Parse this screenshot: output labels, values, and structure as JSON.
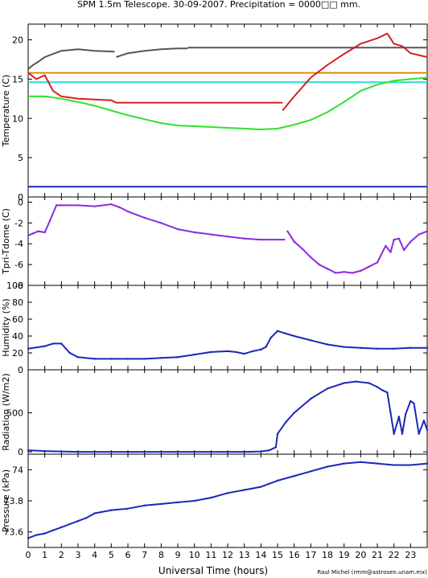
{
  "title": "SPM 1.5m Telescope. 30-09-2007. Precipitation = 0000□□ mm.",
  "xlabel": "Universal Time (hours)",
  "credit": "Raul Michel (rmm@astrosen.unam.mx)",
  "x_ticks": [
    0,
    1,
    2,
    3,
    4,
    5,
    6,
    7,
    8,
    9,
    10,
    11,
    12,
    13,
    14,
    15,
    16,
    17,
    18,
    19,
    20,
    21,
    22,
    23
  ],
  "colors": {
    "dark_gray": "#555555",
    "orange": "#e08a00",
    "cyan": "#30d8d8",
    "red": "#d42020",
    "green": "#30e030",
    "blue": "#1a28b8",
    "purple": "#8a2be2"
  },
  "chart_data": [
    {
      "type": "line",
      "ylabel": "Temperature (C)",
      "xlim": [
        0,
        24
      ],
      "ylim": [
        0,
        22
      ],
      "yticks": [
        0,
        5,
        10,
        15,
        20
      ],
      "series": [
        {
          "color_key": "dark_gray",
          "x": [
            0,
            0.3,
            0.6,
            1,
            1.5,
            2,
            3,
            4,
            5.2
          ],
          "y": [
            16.3,
            16.8,
            17.2,
            17.8,
            18.2,
            18.6,
            18.8,
            18.6,
            18.5
          ]
        },
        {
          "color_key": "dark_gray",
          "x": [
            5.3,
            6,
            7,
            8,
            9,
            9.6
          ],
          "y": [
            17.8,
            18.3,
            18.6,
            18.8,
            18.9,
            18.9
          ]
        },
        {
          "color_key": "dark_gray",
          "x": [
            9.6,
            24
          ],
          "y": [
            19,
            19
          ]
        },
        {
          "color_key": "orange",
          "x": [
            0,
            24
          ],
          "y": [
            15.8,
            15.8
          ]
        },
        {
          "color_key": "cyan",
          "x": [
            0,
            24
          ],
          "y": [
            14.6,
            14.6
          ]
        },
        {
          "color_key": "red",
          "x": [
            0,
            0.5,
            1,
            1.5,
            2,
            3,
            4,
            5,
            5.3,
            15.3
          ],
          "y": [
            15.8,
            15,
            15.5,
            13.5,
            12.8,
            12.5,
            12.4,
            12.3,
            12,
            12
          ]
        },
        {
          "color_key": "red",
          "x": [
            15.3,
            16,
            17,
            18,
            19,
            20,
            21,
            21.6,
            22,
            22.5,
            23,
            24
          ],
          "y": [
            11,
            12.8,
            15.2,
            16.8,
            18.2,
            19.5,
            20.2,
            20.8,
            19.5,
            19.2,
            18.3,
            17.8
          ]
        },
        {
          "color_key": "green",
          "x": [
            0,
            1,
            2,
            3,
            4,
            5,
            6,
            7,
            8,
            9,
            10,
            11,
            12,
            13,
            14,
            15,
            16,
            17,
            18,
            19,
            20,
            21,
            22,
            23,
            24
          ],
          "y": [
            12.8,
            12.8,
            12.5,
            12.1,
            11.6,
            11,
            10.4,
            9.9,
            9.4,
            9.1,
            9,
            8.9,
            8.8,
            8.7,
            8.6,
            8.7,
            9.2,
            9.8,
            10.8,
            12.1,
            13.5,
            14.3,
            14.8,
            15,
            15.2
          ]
        },
        {
          "color_key": "blue",
          "x": [
            0,
            24
          ],
          "y": [
            1.3,
            1.3
          ]
        }
      ]
    },
    {
      "type": "scatter",
      "ylabel": "Tpri-Tdome (C)",
      "xlim": [
        0,
        24
      ],
      "ylim": [
        -8,
        0.5
      ],
      "yticks": [
        -8,
        -6,
        -4,
        -2,
        0
      ],
      "series": [
        {
          "color_key": "purple",
          "x": [
            0,
            0.3,
            0.6,
            1,
            1.3,
            1.7,
            2,
            3,
            4,
            5,
            5.5,
            6,
            7,
            8,
            9,
            10,
            11,
            12,
            13,
            14,
            15,
            15.4
          ],
          "y": [
            -3.2,
            -3.0,
            -2.8,
            -2.9,
            -1.8,
            -0.3,
            -0.3,
            -0.3,
            -0.4,
            -0.2,
            -0.5,
            -0.9,
            -1.5,
            -2,
            -2.6,
            -2.9,
            -3.1,
            -3.3,
            -3.5,
            -3.6,
            -3.6,
            -3.6
          ]
        },
        {
          "color_key": "purple",
          "x": [
            15.6,
            16,
            16.5,
            17,
            17.5,
            18,
            18.5,
            19,
            19.5,
            20,
            20.5,
            21,
            21.5,
            21.8,
            22,
            22.3,
            22.6,
            23,
            23.5,
            24
          ],
          "y": [
            -2.8,
            -3.8,
            -4.5,
            -5.3,
            -6,
            -6.4,
            -6.8,
            -6.7,
            -6.8,
            -6.6,
            -6.2,
            -5.8,
            -4.2,
            -4.8,
            -3.6,
            -3.5,
            -4.6,
            -3.8,
            -3.1,
            -2.8
          ]
        }
      ]
    },
    {
      "type": "scatter",
      "ylabel": "Humidity (%)",
      "xlim": [
        0,
        24
      ],
      "ylim": [
        0,
        100
      ],
      "yticks": [
        0,
        20,
        40,
        60,
        80,
        100
      ],
      "series": [
        {
          "color_key": "blue",
          "x": [
            0,
            1,
            1.5,
            2,
            2.5,
            3,
            4,
            5,
            6,
            7,
            8,
            9,
            10,
            11,
            12,
            12.5,
            13,
            13.5,
            14,
            14.3,
            14.6,
            15,
            15.5,
            16,
            17,
            18,
            19,
            20,
            21,
            22,
            23,
            24
          ],
          "y": [
            25,
            28,
            31,
            31,
            20,
            15,
            13,
            13,
            13,
            13,
            14,
            15,
            18,
            21,
            22,
            21,
            19,
            22,
            24,
            27,
            38,
            46,
            43,
            40,
            35,
            30,
            27,
            26,
            25,
            25,
            26,
            26
          ]
        }
      ]
    },
    {
      "type": "scatter",
      "ylabel": "Radiation (W/m2)",
      "xlim": [
        0,
        24
      ],
      "ylim": [
        -30,
        1050
      ],
      "yticks": [
        0,
        500
      ],
      "series": [
        {
          "color_key": "blue",
          "x": [
            0,
            1,
            2,
            3,
            4,
            5,
            6,
            7,
            8,
            9,
            10,
            11,
            12,
            13,
            14,
            14.5,
            14.9,
            15,
            15.5,
            16,
            17,
            18,
            19,
            19.7,
            20.5,
            21,
            21.3,
            21.6,
            21.8,
            22,
            22.3,
            22.5,
            22.7,
            23,
            23.2,
            23.5,
            23.8,
            24
          ],
          "y": [
            20,
            10,
            5,
            0,
            0,
            0,
            0,
            0,
            0,
            0,
            0,
            0,
            0,
            0,
            5,
            20,
            60,
            230,
            380,
            500,
            680,
            810,
            880,
            900,
            880,
            830,
            790,
            760,
            500,
            230,
            450,
            230,
            480,
            650,
            620,
            230,
            400,
            280
          ]
        }
      ]
    },
    {
      "type": "scatter",
      "ylabel": "Pressure (kPa)",
      "xlim": [
        0,
        24
      ],
      "ylim": [
        73.5,
        74.1
      ],
      "yticks": [
        73.6,
        73.8,
        74
      ],
      "series": [
        {
          "color_key": "blue",
          "x": [
            0,
            0.5,
            1,
            1.5,
            2,
            2.5,
            3,
            3.5,
            4,
            5,
            6,
            7,
            8,
            9,
            10,
            11,
            12,
            13,
            14,
            14.5,
            15,
            16,
            17,
            18,
            19,
            20,
            21,
            22,
            23,
            24
          ],
          "y": [
            73.56,
            73.58,
            73.59,
            73.61,
            73.63,
            73.65,
            73.67,
            73.69,
            73.72,
            73.74,
            73.75,
            73.77,
            73.78,
            73.79,
            73.8,
            73.82,
            73.85,
            73.87,
            73.89,
            73.91,
            73.93,
            73.96,
            73.99,
            74.02,
            74.04,
            74.05,
            74.04,
            74.03,
            74.03,
            74.04
          ]
        }
      ]
    }
  ]
}
